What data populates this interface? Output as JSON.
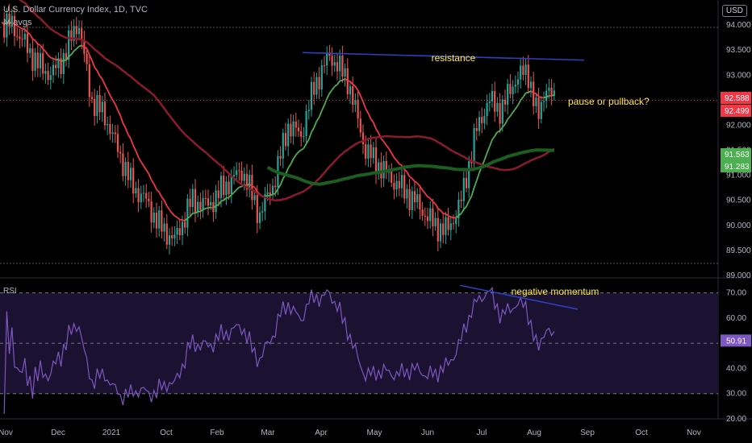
{
  "header": {
    "title": "U.S. Dollar Currency Index, 1D, TVC",
    "indicator": "M avgs",
    "currency_button": "USD"
  },
  "colors": {
    "background": "#000000",
    "candle_up": "#26a69a",
    "candle_down": "#ef5350",
    "ema_up": "#4caf50",
    "ema_down": "#f23645",
    "ma_medium": "#8b1a2e",
    "ma_long": "#1b5e20",
    "rsi_line": "#7e57c2",
    "trendline": "#2f3fbd",
    "annotation_text": "#ffeb3b",
    "label_price_red": "#f23645",
    "label_price_green": "#4caf50"
  },
  "chart_data": [
    {
      "type": "candlestick",
      "title": "U.S. Dollar Currency Index, 1D, TVC",
      "ylim": [
        89.0,
        94.5
      ],
      "y_ticks": [
        "94.000",
        "93.500",
        "93.000",
        "92.000",
        "91.500",
        "91.000",
        "90.500",
        "90.000",
        "89.500",
        "89.000"
      ],
      "x_ticks": [
        "Oct",
        "Nov",
        "Dec",
        "2021",
        "Feb",
        "Mar",
        "Apr",
        "May",
        "Jun",
        "Jul",
        "Aug",
        "Sep",
        "Oct",
        "Nov"
      ],
      "close_keypoints": [
        [
          "Oct",
          94.0
        ],
        [
          "Oct",
          93.6
        ],
        [
          "Oct",
          93.2
        ],
        [
          "Oct",
          93.0
        ],
        [
          "Nov",
          93.4
        ],
        [
          "Nov",
          94.1
        ],
        [
          "Nov",
          92.5
        ],
        [
          "Nov",
          92.2
        ],
        [
          "Dec",
          91.5
        ],
        [
          "Dec",
          90.8
        ],
        [
          "Dec",
          90.5
        ],
        [
          "Dec",
          90.0
        ],
        [
          "2021",
          89.7
        ],
        [
          "2021",
          90.5
        ],
        [
          "2021",
          90.4
        ],
        [
          "Feb",
          90.8
        ],
        [
          "Feb",
          91.1
        ],
        [
          "Feb",
          90.2
        ],
        [
          "Mar",
          90.9
        ],
        [
          "Mar",
          92.0
        ],
        [
          "Mar",
          91.8
        ],
        [
          "Mar",
          92.8
        ],
        [
          "Apr",
          93.4
        ],
        [
          "Apr",
          92.9
        ],
        [
          "Apr",
          91.5
        ],
        [
          "May",
          91.0
        ],
        [
          "May",
          90.5
        ],
        [
          "Jun",
          90.0
        ],
        [
          "Jun",
          89.9
        ],
        [
          "Jun",
          90.5
        ],
        [
          "Jun",
          91.8
        ],
        [
          "Jul",
          92.5
        ],
        [
          "Jul",
          92.3
        ],
        [
          "Jul",
          92.9
        ],
        [
          "Jul",
          93.1
        ],
        [
          "Aug",
          92.1
        ],
        [
          "Aug",
          92.8
        ],
        [
          "Aug",
          92.5
        ]
      ],
      "series": [
        {
          "name": "EMA",
          "last": 92.588
        },
        {
          "name": "SMA",
          "last": 91.563
        },
        {
          "name": "SMA",
          "last": 91.283
        }
      ],
      "price_labels": [
        "92.588",
        "92.499",
        "91.563",
        "91.283"
      ],
      "annotations": [
        {
          "text": "resistance"
        },
        {
          "text": "pause or pullback?"
        }
      ]
    },
    {
      "type": "line",
      "title": "RSI",
      "ylim": [
        20,
        75
      ],
      "y_ticks": [
        "70.00",
        "60.00",
        "50.00",
        "40.00",
        "30.00",
        "20.00"
      ],
      "bands": [
        30,
        50,
        70
      ],
      "last_value": "50.91",
      "annotations": [
        {
          "text": "negative momentum"
        }
      ]
    }
  ]
}
